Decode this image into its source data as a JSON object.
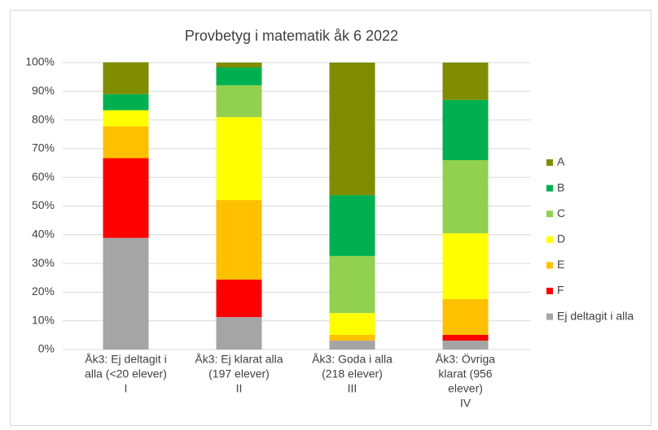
{
  "chart_data": {
    "type": "stacked_bar",
    "title": "Provbetyg i matematik åk 6 2022",
    "categories": [
      [
        "Åk3: Ej deltagit i",
        "alla (<20 elever)",
        "I"
      ],
      [
        "Åk3: Ej klarat alla",
        "(197 elever)",
        "II"
      ],
      [
        "Åk3: Goda i alla",
        "(218 elever)",
        "III"
      ],
      [
        "Åk3: Övriga",
        "klarat (956",
        "elever)",
        "IV"
      ]
    ],
    "series": [
      {
        "name": "Ej deltagit i alla",
        "color": "#a5a5a5",
        "values": [
          38.9,
          11.3,
          3.1,
          3.1
        ]
      },
      {
        "name": "F",
        "color": "#ff0000",
        "values": [
          27.8,
          13.1,
          0,
          2.0
        ]
      },
      {
        "name": "E",
        "color": "#ffc000",
        "values": [
          11.1,
          27.7,
          2.0,
          12.5
        ]
      },
      {
        "name": "D",
        "color": "#ffff00",
        "values": [
          5.6,
          28.9,
          7.6,
          22.9
        ]
      },
      {
        "name": "C",
        "color": "#92d050",
        "values": [
          0,
          11.1,
          19.9,
          25.5
        ]
      },
      {
        "name": "B",
        "color": "#00b050",
        "values": [
          5.6,
          6.2,
          21.2,
          21.0
        ]
      },
      {
        "name": "A",
        "color": "#7f8c00",
        "values": [
          11.1,
          1.7,
          46.2,
          13.0
        ]
      }
    ],
    "ylim": [
      0,
      100
    ],
    "yticks": [
      {
        "value": 0,
        "label": "0%"
      },
      {
        "value": 10,
        "label": "10%"
      },
      {
        "value": 20,
        "label": "20%"
      },
      {
        "value": 30,
        "label": "30%"
      },
      {
        "value": 40,
        "label": "40%"
      },
      {
        "value": 50,
        "label": "50%"
      },
      {
        "value": 60,
        "label": "60%"
      },
      {
        "value": 70,
        "label": "70%"
      },
      {
        "value": 80,
        "label": "80%"
      },
      {
        "value": 90,
        "label": "90%"
      },
      {
        "value": 100,
        "label": "100%"
      }
    ],
    "grid": true,
    "legend": "right"
  }
}
